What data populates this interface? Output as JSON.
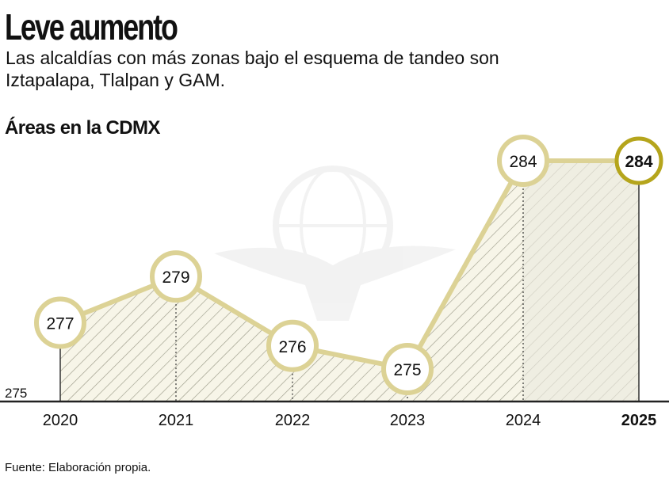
{
  "header": {
    "title": "Leve aumento",
    "subtitle": "Las alcaldías con más zonas bajo el esquema de tandeo son Iztapalapa, Tlalpan y GAM.",
    "section_label": "Áreas en la CDMX"
  },
  "footer": {
    "source": "Fuente: Elaboración propia."
  },
  "colors": {
    "line": "#dcd295",
    "highlight": "#b5a51c",
    "fill": "#f7f5e8",
    "fill_last": "#ebeadf",
    "hatch": "#9c9c8a",
    "axis": "#222222"
  },
  "chart_data": {
    "type": "area",
    "title": "Áreas en la CDMX",
    "xlabel": "",
    "ylabel": "",
    "categories": [
      "2020",
      "2021",
      "2022",
      "2023",
      "2024",
      "2025"
    ],
    "values": [
      277,
      279,
      276,
      275,
      284,
      284
    ],
    "y_baseline_label": "275",
    "highlight_index": 5,
    "grid": false,
    "legend": "none"
  }
}
